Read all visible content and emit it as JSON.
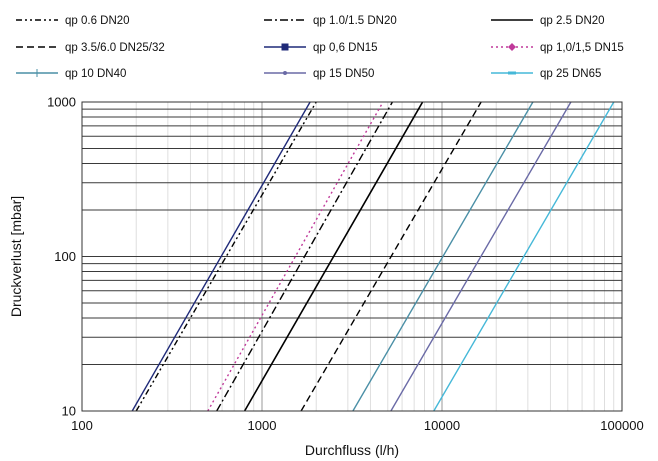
{
  "chart_data": {
    "type": "line",
    "xlabel": "Durchfluss (l/h)",
    "ylabel": "Druckverlust [mbar]",
    "xscale": "log",
    "yscale": "log",
    "xlim": [
      100,
      100000
    ],
    "ylim": [
      10,
      1000
    ],
    "x_ticks": [
      "100",
      "1000",
      "10000",
      "100000"
    ],
    "y_ticks": [
      "10",
      "100",
      "1000"
    ],
    "grid": "major and minor, both axes",
    "legend": "top",
    "series": [
      {
        "name": "qp 0.6 DN20",
        "color": "#000000",
        "style": "dash-dot-dot",
        "x": [
          200,
          2000
        ],
        "y": [
          10,
          1000
        ]
      },
      {
        "name": "qp 1.0/1.5 DN20",
        "color": "#000000",
        "style": "dash-dot",
        "x": [
          560,
          5300
        ],
        "y": [
          10,
          1000
        ]
      },
      {
        "name": "qp 2.5 DN20",
        "color": "#000000",
        "style": "solid",
        "x": [
          800,
          7800
        ],
        "y": [
          10,
          1000
        ]
      },
      {
        "name": "qp 3.5/6.0 DN25/32",
        "color": "#000000",
        "style": "dashed",
        "x": [
          1650,
          16500
        ],
        "y": [
          10,
          1000
        ]
      },
      {
        "name": "qp 0,6 DN15",
        "color": "#1f2a78",
        "style": "solid",
        "marker": "square",
        "x": [
          190,
          1850
        ],
        "y": [
          10,
          1000
        ]
      },
      {
        "name": "qp 1,0/1,5 DN15",
        "color": "#c0399a",
        "style": "dotted",
        "marker": "diamond",
        "x": [
          500,
          4700
        ],
        "y": [
          10,
          1000
        ]
      },
      {
        "name": "qp 10 DN40",
        "color": "#4a8fa6",
        "style": "solid",
        "marker": "plus",
        "x": [
          3200,
          32000
        ],
        "y": [
          10,
          1000
        ]
      },
      {
        "name": "qp 15 DN50",
        "color": "#6a6aa6",
        "style": "solid",
        "marker": "dot",
        "x": [
          5200,
          52000
        ],
        "y": [
          10,
          1000
        ]
      },
      {
        "name": "qp 25 DN65",
        "color": "#45b8d8",
        "style": "solid",
        "marker": "dash",
        "x": [
          9000,
          90000
        ],
        "y": [
          10,
          1000
        ]
      }
    ]
  }
}
